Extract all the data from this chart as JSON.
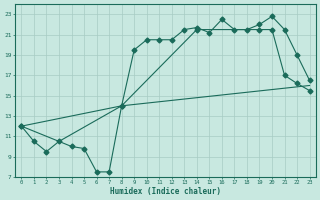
{
  "title": "",
  "xlabel": "Humidex (Indice chaleur)",
  "ylabel": "",
  "bg_color": "#c8e8e0",
  "grid_color": "#a8ccc4",
  "line_color": "#1a6b5a",
  "xlim": [
    -0.5,
    23.5
  ],
  "ylim": [
    7,
    24
  ],
  "yticks": [
    7,
    9,
    11,
    13,
    15,
    17,
    19,
    21,
    23
  ],
  "xticks": [
    0,
    1,
    2,
    3,
    4,
    5,
    6,
    7,
    8,
    9,
    10,
    11,
    12,
    13,
    14,
    15,
    16,
    17,
    18,
    19,
    20,
    21,
    22,
    23
  ],
  "line1_x": [
    0,
    1,
    2,
    3,
    4,
    5,
    6,
    7,
    8,
    9,
    10,
    11,
    12,
    13,
    14,
    15,
    16,
    17,
    18,
    19,
    20,
    21,
    22,
    23
  ],
  "line1_y": [
    12.0,
    10.5,
    9.5,
    10.5,
    10.0,
    9.8,
    7.5,
    7.5,
    14.0,
    19.5,
    20.5,
    20.5,
    20.5,
    21.5,
    21.7,
    21.2,
    22.5,
    21.5,
    21.5,
    22.0,
    22.8,
    21.5,
    19.0,
    16.5
  ],
  "line2_x": [
    0,
    3,
    8,
    23
  ],
  "line2_y": [
    12.0,
    10.5,
    14.0,
    16.0
  ],
  "line3_x": [
    0,
    8,
    14,
    19,
    20,
    21,
    22,
    23
  ],
  "line3_y": [
    12.0,
    14.0,
    21.5,
    21.5,
    21.5,
    17.0,
    16.2,
    15.5
  ]
}
